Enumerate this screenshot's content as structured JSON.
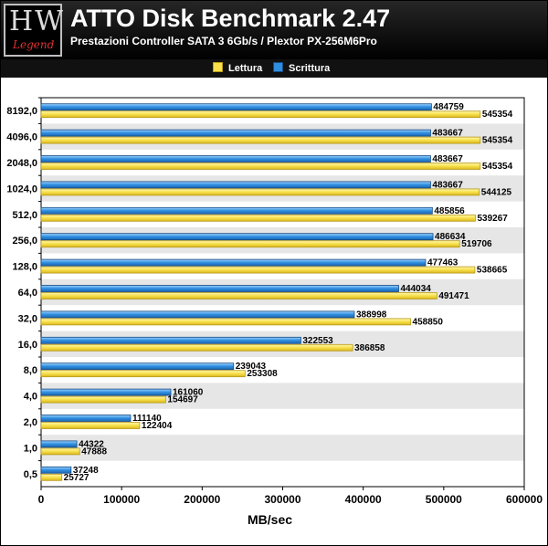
{
  "header": {
    "logo_text": "HW",
    "logo_sub": "Legend",
    "title": "ATTO Disk Benchmark 2.47",
    "subtitle": "Prestazioni Controller SATA 3 6Gb/s / Plextor PX-256M6Pro"
  },
  "legend": {
    "read_label": "Lettura",
    "write_label": "Scrittura"
  },
  "colors": {
    "read": "#f7e04a",
    "read_edge": "#b89a1a",
    "write": "#2e8ee0",
    "write_edge": "#164a82",
    "band": "#e6e6e6"
  },
  "chart_data": {
    "type": "bar",
    "orientation": "horizontal",
    "xlabel": "MB/sec",
    "xlim": [
      0,
      600000
    ],
    "xticks": [
      0,
      100000,
      200000,
      300000,
      400000,
      500000,
      600000
    ],
    "legend_position": "top",
    "categories": [
      "8192,0",
      "4096,0",
      "2048,0",
      "1024,0",
      "512,0",
      "256,0",
      "128,0",
      "64,0",
      "32,0",
      "16,0",
      "8,0",
      "4,0",
      "2,0",
      "1,0",
      "0,5"
    ],
    "series": [
      {
        "name": "Scrittura",
        "values": [
          484759,
          483667,
          483667,
          483667,
          485856,
          486634,
          477463,
          444034,
          388998,
          322553,
          239043,
          161060,
          111140,
          44322,
          37248
        ]
      },
      {
        "name": "Lettura",
        "values": [
          545354,
          545354,
          545354,
          544125,
          539267,
          519706,
          538665,
          491471,
          458850,
          386858,
          253308,
          154697,
          122404,
          47888,
          25727
        ]
      }
    ]
  }
}
